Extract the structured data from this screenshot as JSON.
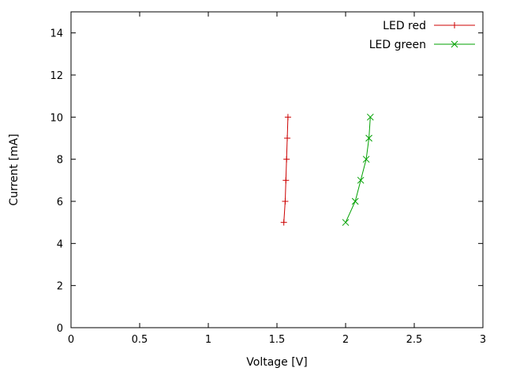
{
  "chart_data": {
    "type": "line",
    "title": "",
    "xlabel": "Voltage [V]",
    "ylabel": "Current [mA]",
    "xlim": [
      0,
      3
    ],
    "ylim": [
      0,
      15
    ],
    "xticks": [
      0,
      0.5,
      1,
      1.5,
      2,
      2.5,
      3
    ],
    "yticks": [
      0,
      2,
      4,
      6,
      8,
      10,
      12,
      14
    ],
    "grid": false,
    "legend_position": "top-right-inside",
    "axis_color": "#000000",
    "series": [
      {
        "name": "LED red",
        "color": "#cc0000",
        "marker": "plus",
        "points": [
          [
            1.55,
            5
          ],
          [
            1.56,
            6
          ],
          [
            1.565,
            7
          ],
          [
            1.57,
            8
          ],
          [
            1.575,
            9
          ],
          [
            1.58,
            10
          ]
        ]
      },
      {
        "name": "LED green",
        "color": "#00a000",
        "marker": "cross",
        "points": [
          [
            2.0,
            5
          ],
          [
            2.07,
            6
          ],
          [
            2.11,
            7
          ],
          [
            2.15,
            8
          ],
          [
            2.17,
            9
          ],
          [
            2.18,
            10
          ]
        ]
      }
    ]
  }
}
